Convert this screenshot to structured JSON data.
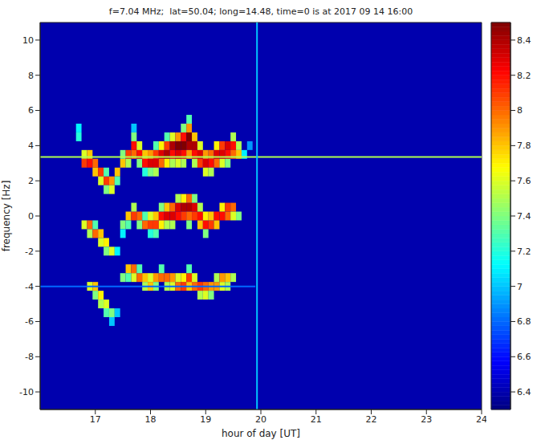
{
  "chart_data": {
    "type": "heatmap",
    "title": "f=7.04 MHz;  lat=50.04; long=14.48, time=0 is at 2017 09 14 16:00",
    "xlabel": "hour of day [UT]",
    "ylabel": "frequency [Hz]",
    "xlim": [
      16,
      24
    ],
    "xticks": [
      17,
      18,
      19,
      20,
      21,
      22,
      23,
      24
    ],
    "ylim": [
      -11,
      11
    ],
    "yticks": [
      -10,
      -8,
      -6,
      -4,
      -2,
      0,
      2,
      4,
      6,
      8,
      10
    ],
    "grid": false,
    "heatmap": {
      "clim": [
        6.3,
        8.5
      ],
      "cticks": [
        6.4,
        6.6,
        6.8,
        7,
        7.2,
        7.4,
        7.6,
        7.8,
        8,
        8.2,
        8.4
      ],
      "background": 6.4,
      "cell_size": [
        0.1,
        0.5
      ],
      "lines": [
        {
          "y": 3.35,
          "x": [
            16,
            24
          ],
          "value": 7.5
        },
        {
          "y": -4,
          "x": [
            16,
            19.9
          ],
          "value": 6.8
        },
        {
          "x": 19.93,
          "y": [
            -11,
            11
          ],
          "value": 7.0
        }
      ],
      "cells": [
        [
          16.7,
          5.0,
          7.1
        ],
        [
          16.7,
          4.5,
          7.2
        ],
        [
          16.8,
          3.5,
          7.6
        ],
        [
          16.8,
          3.0,
          8.1
        ],
        [
          16.8,
          -0.5,
          7.6
        ],
        [
          16.9,
          3.0,
          8.2
        ],
        [
          16.9,
          3.5,
          7.8
        ],
        [
          16.9,
          -0.5,
          8.0
        ],
        [
          16.9,
          -1.0,
          7.5
        ],
        [
          16.9,
          -4.0,
          7.6
        ],
        [
          17.0,
          3.0,
          8.0
        ],
        [
          17.0,
          2.5,
          7.8
        ],
        [
          17.0,
          -1.0,
          8.0
        ],
        [
          17.0,
          -0.5,
          7.3
        ],
        [
          17.0,
          -4.0,
          7.8
        ],
        [
          17.0,
          -4.5,
          7.4
        ],
        [
          17.1,
          2.5,
          8.1
        ],
        [
          17.1,
          2.0,
          7.6
        ],
        [
          17.1,
          -1.0,
          7.8
        ],
        [
          17.1,
          -1.5,
          7.6
        ],
        [
          17.1,
          -4.5,
          7.7
        ],
        [
          17.1,
          -5.0,
          7.5
        ],
        [
          17.2,
          2.0,
          8.1
        ],
        [
          17.2,
          1.5,
          7.4
        ],
        [
          17.2,
          2.5,
          7.3
        ],
        [
          17.2,
          -1.5,
          7.7
        ],
        [
          17.2,
          -2.0,
          7.4
        ],
        [
          17.2,
          -5.0,
          7.6
        ],
        [
          17.2,
          -5.5,
          7.3
        ],
        [
          17.3,
          2.0,
          7.9
        ],
        [
          17.3,
          1.5,
          7.6
        ],
        [
          17.3,
          -2.0,
          7.6
        ],
        [
          17.3,
          -5.5,
          7.4
        ],
        [
          17.3,
          -6.0,
          7.0
        ],
        [
          17.4,
          2.5,
          7.8
        ],
        [
          17.4,
          2.0,
          7.3
        ],
        [
          17.4,
          -2.0,
          7.1
        ],
        [
          17.4,
          -5.5,
          7.0
        ],
        [
          17.5,
          3.0,
          7.8
        ],
        [
          17.5,
          3.5,
          7.4
        ],
        [
          17.5,
          -0.5,
          7.4
        ],
        [
          17.5,
          -1.0,
          7.1
        ],
        [
          17.5,
          -3.5,
          7.4
        ],
        [
          17.6,
          3.5,
          8.1
        ],
        [
          17.6,
          3.0,
          7.5
        ],
        [
          17.6,
          0.0,
          7.8
        ],
        [
          17.6,
          -0.5,
          7.3
        ],
        [
          17.6,
          -3.0,
          7.8
        ],
        [
          17.6,
          -3.5,
          7.3
        ],
        [
          17.7,
          3.5,
          8.0
        ],
        [
          17.7,
          4.0,
          8.2
        ],
        [
          17.7,
          4.5,
          7.4
        ],
        [
          17.7,
          5.0,
          7.0
        ],
        [
          17.7,
          0.0,
          8.1
        ],
        [
          17.7,
          0.5,
          7.5
        ],
        [
          17.7,
          -3.0,
          8.0
        ],
        [
          17.7,
          -3.5,
          7.6
        ],
        [
          17.8,
          3.5,
          8.2
        ],
        [
          17.8,
          4.0,
          7.6
        ],
        [
          17.8,
          3.0,
          7.4
        ],
        [
          17.8,
          0.0,
          8.0
        ],
        [
          17.8,
          -0.5,
          7.4
        ],
        [
          17.8,
          -3.5,
          8.0
        ],
        [
          17.8,
          -3.0,
          7.3
        ],
        [
          17.9,
          3.0,
          8.2
        ],
        [
          17.9,
          3.5,
          7.8
        ],
        [
          17.9,
          2.5,
          7.2
        ],
        [
          17.9,
          -0.5,
          8.0
        ],
        [
          17.9,
          0.0,
          7.3
        ],
        [
          17.9,
          -3.5,
          7.8
        ],
        [
          17.9,
          -4.0,
          7.5
        ],
        [
          18.0,
          3.0,
          8.3
        ],
        [
          18.0,
          3.5,
          7.9
        ],
        [
          18.0,
          2.5,
          7.4
        ],
        [
          18.0,
          -0.5,
          8.1
        ],
        [
          18.0,
          0.0,
          7.6
        ],
        [
          18.0,
          -1.0,
          7.2
        ],
        [
          18.0,
          -4.0,
          7.8
        ],
        [
          18.0,
          -3.5,
          7.6
        ],
        [
          18.1,
          3.0,
          8.3
        ],
        [
          18.1,
          3.5,
          8.1
        ],
        [
          18.1,
          2.5,
          7.5
        ],
        [
          18.1,
          4.0,
          7.3
        ],
        [
          18.1,
          -0.5,
          8.1
        ],
        [
          18.1,
          0.0,
          7.8
        ],
        [
          18.1,
          -1.0,
          7.3
        ],
        [
          18.1,
          -3.5,
          7.9
        ],
        [
          18.1,
          -4.0,
          7.4
        ],
        [
          18.2,
          3.5,
          8.3
        ],
        [
          18.2,
          3.0,
          8.0
        ],
        [
          18.2,
          4.0,
          7.7
        ],
        [
          18.2,
          0.0,
          8.2
        ],
        [
          18.2,
          -0.5,
          7.7
        ],
        [
          18.2,
          0.5,
          7.4
        ],
        [
          18.2,
          -3.5,
          8.0
        ],
        [
          18.2,
          -3.0,
          7.3
        ],
        [
          18.3,
          3.5,
          8.4
        ],
        [
          18.3,
          4.0,
          8.1
        ],
        [
          18.3,
          3.0,
          7.7
        ],
        [
          18.3,
          4.5,
          7.3
        ],
        [
          18.3,
          0.0,
          8.3
        ],
        [
          18.3,
          0.5,
          7.8
        ],
        [
          18.3,
          -0.5,
          7.5
        ],
        [
          18.3,
          -3.5,
          8.0
        ],
        [
          18.3,
          -4.0,
          7.5
        ],
        [
          18.4,
          4.0,
          8.4
        ],
        [
          18.4,
          3.5,
          8.2
        ],
        [
          18.4,
          4.5,
          7.6
        ],
        [
          18.4,
          3.0,
          7.5
        ],
        [
          18.4,
          0.0,
          8.3
        ],
        [
          18.4,
          0.5,
          8.0
        ],
        [
          18.4,
          -0.5,
          7.5
        ],
        [
          18.4,
          -3.5,
          7.9
        ],
        [
          18.4,
          -4.0,
          7.6
        ],
        [
          18.5,
          4.0,
          8.5
        ],
        [
          18.5,
          3.5,
          8.3
        ],
        [
          18.5,
          4.5,
          7.9
        ],
        [
          18.5,
          3.0,
          7.6
        ],
        [
          18.5,
          0.5,
          8.3
        ],
        [
          18.5,
          0.0,
          8.2
        ],
        [
          18.5,
          1.0,
          7.5
        ],
        [
          18.5,
          -4.0,
          8.0
        ],
        [
          18.5,
          -3.5,
          7.6
        ],
        [
          18.6,
          4.0,
          8.5
        ],
        [
          18.6,
          4.5,
          8.2
        ],
        [
          18.6,
          3.5,
          8.2
        ],
        [
          18.6,
          5.0,
          7.4
        ],
        [
          18.6,
          3.0,
          7.5
        ],
        [
          18.6,
          0.5,
          8.4
        ],
        [
          18.6,
          0.0,
          8.1
        ],
        [
          18.6,
          1.0,
          7.7
        ],
        [
          18.6,
          -4.0,
          8.1
        ],
        [
          18.6,
          -3.5,
          7.7
        ],
        [
          18.7,
          4.5,
          8.5
        ],
        [
          18.7,
          4.0,
          8.4
        ],
        [
          18.7,
          5.0,
          7.9
        ],
        [
          18.7,
          3.5,
          7.9
        ],
        [
          18.7,
          5.5,
          7.3
        ],
        [
          18.7,
          0.5,
          8.4
        ],
        [
          18.7,
          1.0,
          8.0
        ],
        [
          18.7,
          0.0,
          8.0
        ],
        [
          18.7,
          -0.5,
          7.4
        ],
        [
          18.7,
          -3.5,
          8.1
        ],
        [
          18.7,
          -4.0,
          7.8
        ],
        [
          18.7,
          -3.0,
          7.3
        ],
        [
          18.8,
          4.0,
          8.4
        ],
        [
          18.8,
          3.5,
          8.2
        ],
        [
          18.8,
          4.5,
          7.8
        ],
        [
          18.8,
          3.0,
          7.5
        ],
        [
          18.8,
          0.5,
          8.3
        ],
        [
          18.8,
          0.0,
          8.1
        ],
        [
          18.8,
          1.0,
          7.4
        ],
        [
          18.8,
          -4.0,
          8.0
        ],
        [
          18.8,
          -3.5,
          7.6
        ],
        [
          18.9,
          3.5,
          8.3
        ],
        [
          18.9,
          3.0,
          8.1
        ],
        [
          18.9,
          4.0,
          7.6
        ],
        [
          18.9,
          0.0,
          8.2
        ],
        [
          18.9,
          -0.5,
          7.8
        ],
        [
          18.9,
          0.5,
          7.5
        ],
        [
          18.9,
          -4.0,
          8.1
        ],
        [
          18.9,
          -4.5,
          7.5
        ],
        [
          19.0,
          3.0,
          8.3
        ],
        [
          19.0,
          3.5,
          7.9
        ],
        [
          19.0,
          2.5,
          7.6
        ],
        [
          19.0,
          -0.5,
          8.2
        ],
        [
          19.0,
          0.0,
          7.7
        ],
        [
          19.0,
          -1.0,
          7.4
        ],
        [
          19.0,
          -4.0,
          8.0
        ],
        [
          19.0,
          -4.5,
          7.6
        ],
        [
          19.1,
          3.0,
          8.2
        ],
        [
          19.1,
          3.5,
          8.0
        ],
        [
          19.1,
          2.5,
          7.5
        ],
        [
          19.1,
          -0.5,
          8.1
        ],
        [
          19.1,
          0.0,
          7.8
        ],
        [
          19.1,
          -4.0,
          7.9
        ],
        [
          19.1,
          -4.5,
          7.4
        ],
        [
          19.2,
          3.5,
          8.3
        ],
        [
          19.2,
          3.0,
          8.0
        ],
        [
          19.2,
          4.0,
          7.7
        ],
        [
          19.2,
          0.0,
          8.2
        ],
        [
          19.2,
          -0.5,
          7.8
        ],
        [
          19.2,
          -4.0,
          7.9
        ],
        [
          19.2,
          -3.5,
          7.5
        ],
        [
          19.3,
          3.5,
          8.3
        ],
        [
          19.3,
          4.0,
          8.1
        ],
        [
          19.3,
          3.0,
          7.6
        ],
        [
          19.3,
          0.0,
          8.2
        ],
        [
          19.3,
          0.5,
          7.7
        ],
        [
          19.3,
          -3.5,
          7.9
        ],
        [
          19.3,
          -4.0,
          7.6
        ],
        [
          19.4,
          4.0,
          8.3
        ],
        [
          19.4,
          3.5,
          8.2
        ],
        [
          19.4,
          3.0,
          7.4
        ],
        [
          19.4,
          0.5,
          8.1
        ],
        [
          19.4,
          0.0,
          8.0
        ],
        [
          19.4,
          -3.5,
          7.8
        ],
        [
          19.4,
          -4.0,
          7.5
        ],
        [
          19.5,
          4.0,
          8.2
        ],
        [
          19.5,
          3.5,
          8.0
        ],
        [
          19.5,
          4.5,
          7.5
        ],
        [
          19.5,
          0.5,
          8.0
        ],
        [
          19.5,
          0.0,
          7.6
        ],
        [
          19.5,
          -3.5,
          7.5
        ],
        [
          19.6,
          3.5,
          7.8
        ],
        [
          19.6,
          4.0,
          7.5
        ],
        [
          19.6,
          0.0,
          7.4
        ],
        [
          19.7,
          3.5,
          7.1
        ],
        [
          19.8,
          4.0,
          6.9
        ]
      ]
    }
  }
}
